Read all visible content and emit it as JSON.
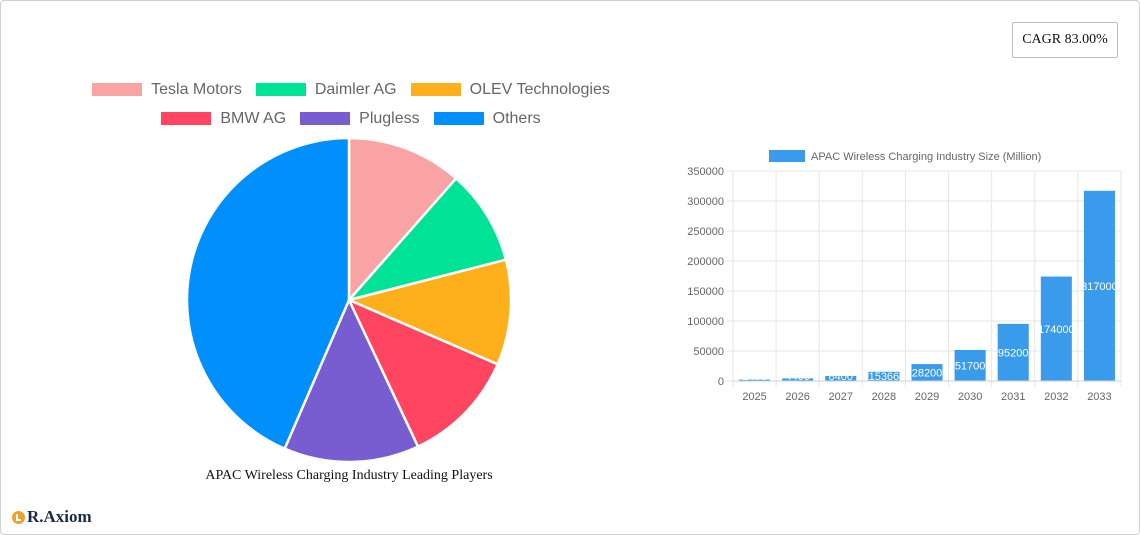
{
  "cagr": {
    "label": "CAGR 83.00%"
  },
  "brand": {
    "name": "R.Axiom",
    "logo_icon": "chart-logo-icon"
  },
  "chart_data": [
    {
      "type": "pie",
      "title": "APAC Wireless Charging Industry Leading Players",
      "legend_position": "top",
      "series": [
        {
          "name": "Tesla Motors",
          "value": 11.5,
          "color": "#f9a3a4"
        },
        {
          "name": "Daimler AG",
          "value": 9.5,
          "color": "#00e396"
        },
        {
          "name": "OLEV Technologies",
          "value": 10.5,
          "color": "#fdb01c"
        },
        {
          "name": "BMW AG",
          "value": 11.5,
          "color": "#ff4560"
        },
        {
          "name": "Plugless",
          "value": 13.5,
          "color": "#775dd0"
        },
        {
          "name": "Others",
          "value": 43.5,
          "color": "#008ffb"
        }
      ]
    },
    {
      "type": "bar",
      "legend": "APAC Wireless Charging Industry Size (Million)",
      "legend_position": "top",
      "color": "#3a9bec",
      "categories": [
        "2025",
        "2026",
        "2027",
        "2028",
        "2029",
        "2030",
        "2031",
        "2032",
        "2033"
      ],
      "values": [
        2400,
        4400,
        8400,
        15366,
        28200,
        51700,
        95200,
        174000,
        317000
      ],
      "data_labels": [
        "2400",
        "4400",
        "8400",
        "15366",
        "28200",
        "51700",
        "95200",
        "174000",
        "317000"
      ],
      "ylim": [
        0,
        350000
      ],
      "yticks": [
        "0",
        "50000",
        "100000",
        "150000",
        "200000",
        "250000",
        "300000",
        "350000"
      ],
      "grid": true
    }
  ]
}
